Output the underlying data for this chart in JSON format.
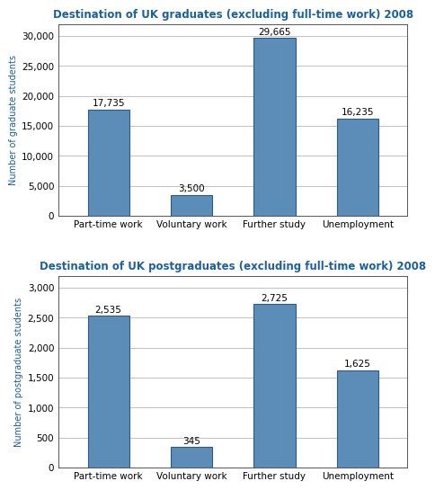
{
  "chart1": {
    "title": "Destination of UK graduates (excluding full-time work) 2008",
    "categories": [
      "Part-time work",
      "Voluntary work",
      "Further study",
      "Unemployment"
    ],
    "values": [
      17735,
      3500,
      29665,
      16235
    ],
    "labels": [
      "17,735",
      "3,500",
      "29,665",
      "16,235"
    ],
    "ylabel": "Number of graduate students",
    "ylim": [
      0,
      32000
    ],
    "yticks": [
      0,
      5000,
      10000,
      15000,
      20000,
      25000,
      30000
    ],
    "yticklabels": [
      "0",
      "5,000",
      "10,000",
      "15,000",
      "20,000",
      "25,000",
      "30,000"
    ]
  },
  "chart2": {
    "title": "Destination of UK postgraduates (excluding full-time work) 2008",
    "categories": [
      "Part-time work",
      "Voluntary work",
      "Further study",
      "Unemployment"
    ],
    "values": [
      2535,
      345,
      2725,
      1625
    ],
    "labels": [
      "2,535",
      "345",
      "2,725",
      "1,625"
    ],
    "ylabel": "Number of postgraduate students",
    "ylim": [
      0,
      3200
    ],
    "yticks": [
      0,
      500,
      1000,
      1500,
      2000,
      2500,
      3000
    ],
    "yticklabels": [
      "0",
      "500",
      "1,000",
      "1,500",
      "2,000",
      "2,500",
      "3,000"
    ]
  },
  "bar_color": "#5b8db8",
  "bar_edgecolor": "#2a5a8a",
  "title_color": "#1a5fa0",
  "ylabel_color": "#1a5fa0",
  "label_fontsize": 7.5,
  "title_fontsize": 8.5,
  "ylabel_fontsize": 7,
  "xtick_fontsize": 7.5,
  "ytick_fontsize": 7.5,
  "bar_width": 0.5
}
